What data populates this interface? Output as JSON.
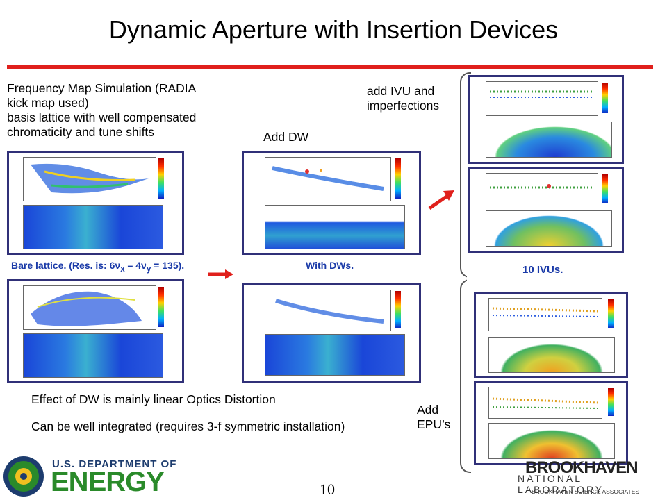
{
  "slide": {
    "title": "Dynamic Aperture with Insertion Devices",
    "page_number": "10"
  },
  "text": {
    "intro_line1": "Frequency Map Simulation (RADIA",
    "intro_line2": "kick map used)",
    "intro_line3": "basis lattice with well compensated",
    "intro_line4": "chromaticity and tune shifts",
    "add_dw": "Add DW",
    "add_ivu_line1": "add IVU  and",
    "add_ivu_line2": "imperfections",
    "add_epu_line1": "Add",
    "add_epu_line2": "EPU’s",
    "effect_line": "Effect of DW is mainly linear Optics Distortion",
    "integrated_line": "Can be well integrated (requires 3-f symmetric installation)"
  },
  "figure_captions": {
    "bare_lattice": "Bare lattice. (Res. is: 6ν",
    "bare_lattice_sub": "x",
    "bare_lattice_mid": " – 4ν",
    "bare_lattice_sub2": "y",
    "bare_lattice_end": " = 135).",
    "with_dws": "With DWs.",
    "ten_ivus": "10 IVUs."
  },
  "logos": {
    "doe_line1": "U.S. DEPARTMENT OF",
    "doe_line2": "ENERGY",
    "bnl_line1": "BROOKHAVEN",
    "bnl_line2": "NATIONAL LABORATORY",
    "bnl_line3": "BROOKHAVEN SCIENCE ASSOCIATES"
  },
  "colors": {
    "accent_red": "#e0201c",
    "panel_border": "#303078",
    "doe_green": "#2a8a2a"
  }
}
